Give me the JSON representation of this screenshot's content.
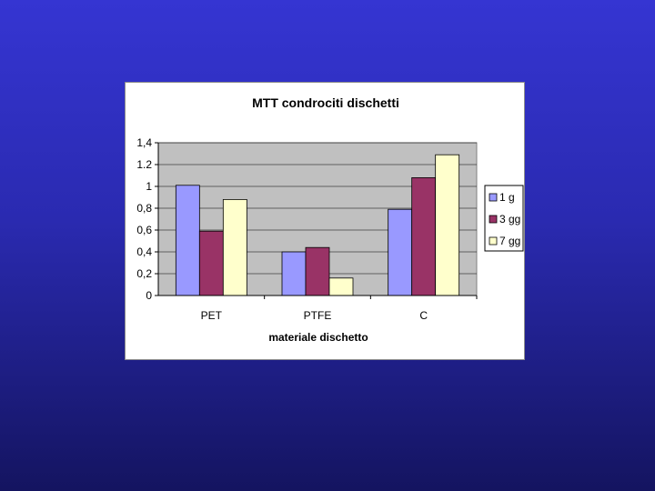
{
  "chart_data": {
    "type": "bar",
    "title": "MTT condrociti dischetti",
    "xlabel": "materiale dischetto",
    "ylabel": "",
    "categories": [
      "PET",
      "PTFE",
      "C"
    ],
    "series": [
      {
        "name": "1 g",
        "values": [
          1.01,
          0.4,
          0.79
        ],
        "color": "#9999ff"
      },
      {
        "name": "3 gg",
        "values": [
          0.59,
          0.44,
          1.08
        ],
        "color": "#993366"
      },
      {
        "name": "7 gg",
        "values": [
          0.88,
          0.16,
          1.29
        ],
        "color": "#ffffcc"
      }
    ],
    "ylim": [
      0,
      1.4
    ],
    "yticks": [
      {
        "value": 0,
        "label": "0"
      },
      {
        "value": 0.2,
        "label": "0,2"
      },
      {
        "value": 0.4,
        "label": "0,4"
      },
      {
        "value": 0.6,
        "label": "0,6"
      },
      {
        "value": 0.8,
        "label": "0,8"
      },
      {
        "value": 1.0,
        "label": "1"
      },
      {
        "value": 1.2,
        "label": "1.2"
      },
      {
        "value": 1.4,
        "label": "1,4"
      }
    ],
    "grid": true,
    "plot_background": "#c0c0c0",
    "legend_position": "right"
  }
}
